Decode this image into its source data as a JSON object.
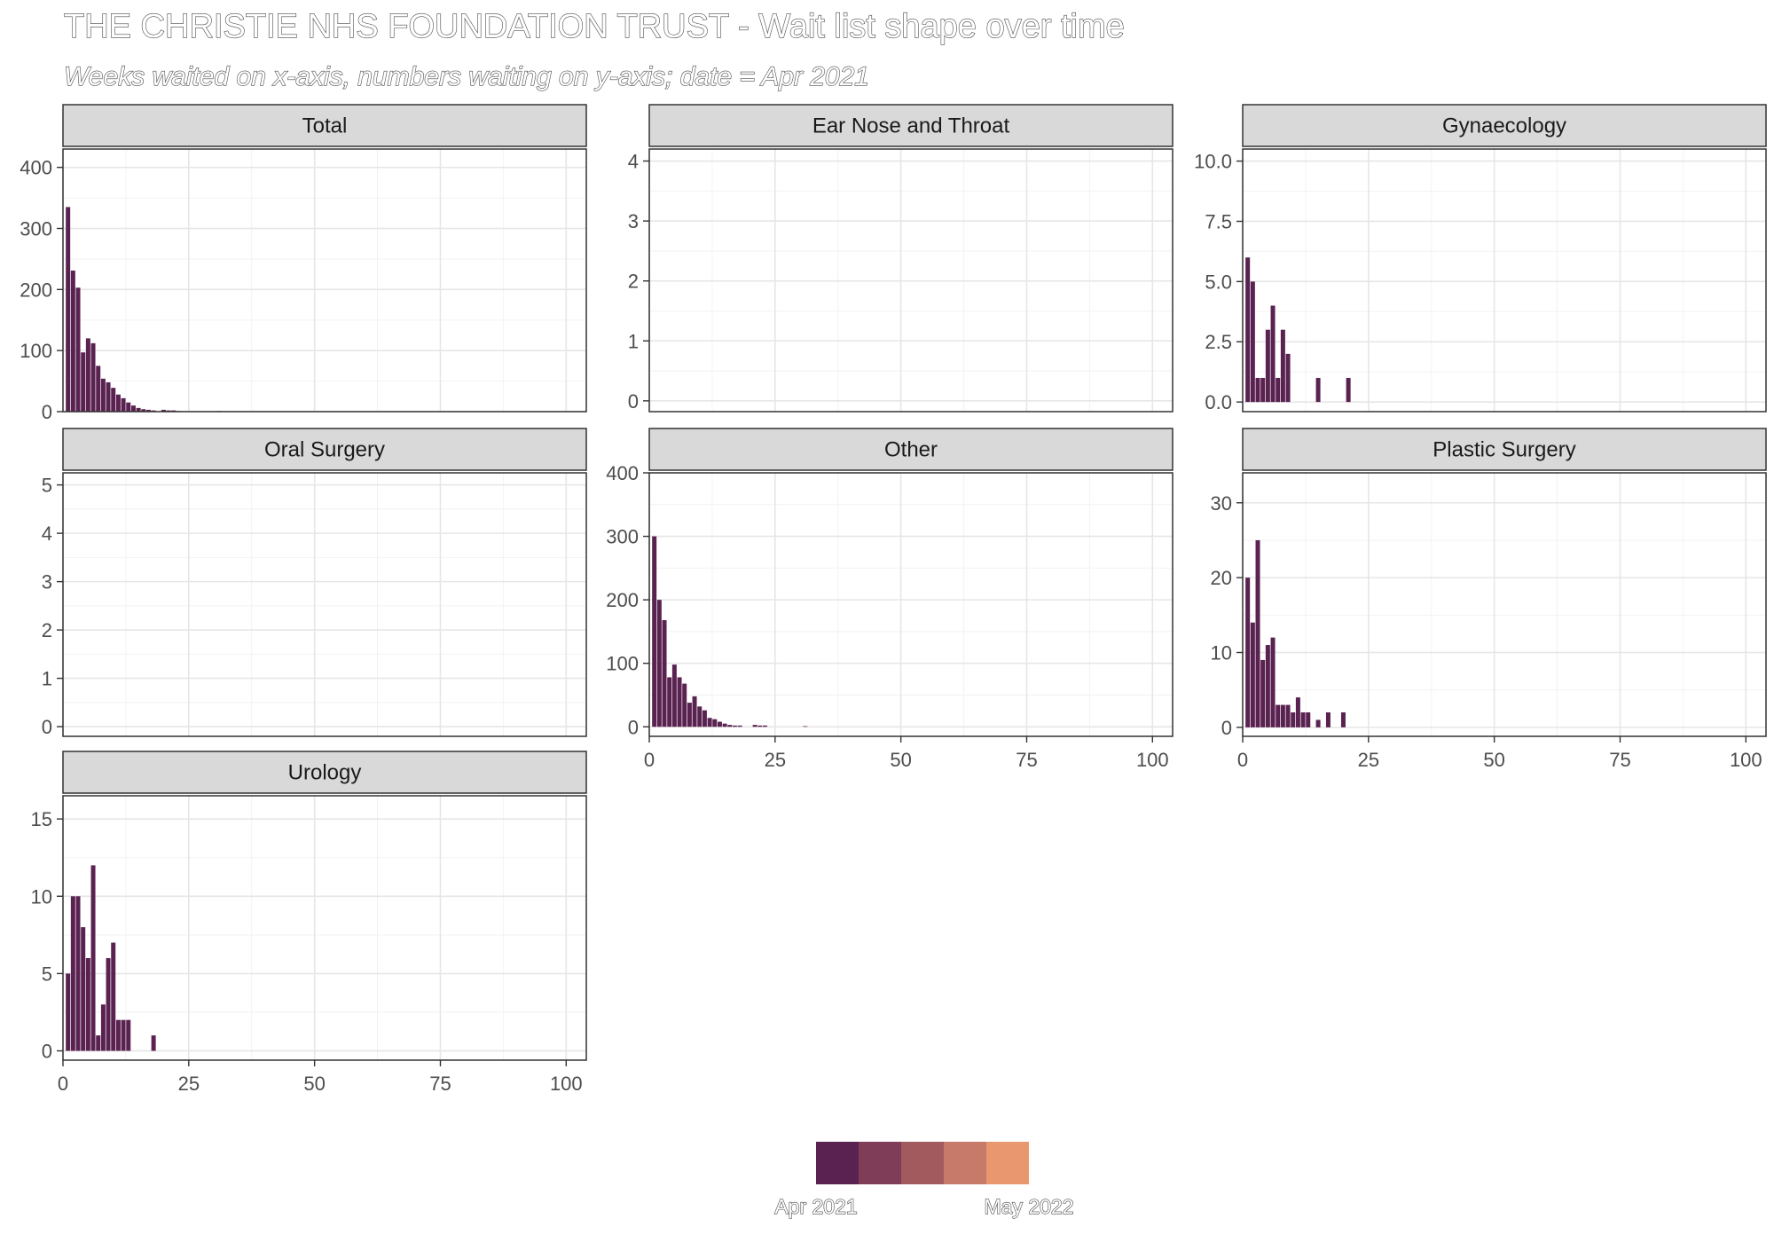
{
  "chart_data": {
    "type": "bar",
    "title": "THE CHRISTIE NHS FOUNDATION TRUST - Wait list shape over time",
    "subtitle": "Weeks waited on x-axis, numbers waiting on y-axis; date = Apr 2021",
    "xlim": [
      0,
      104
    ],
    "x_ticks": [
      0,
      25,
      50,
      75,
      100
    ],
    "bar_color": "#5a2250",
    "legend": {
      "position": "bottom",
      "colors": [
        "#5a2250",
        "#7f3d58",
        "#a35a5f",
        "#c77a6a",
        "#e8976e"
      ],
      "labels": [
        "Apr 2021",
        "May 2022"
      ]
    },
    "panels": [
      {
        "name": "Total",
        "ylim": [
          0,
          430
        ],
        "y_ticks": [
          0,
          100,
          200,
          300,
          400
        ],
        "y_tick_labels": [
          "0",
          "100",
          "200",
          "300",
          "400"
        ],
        "x": [
          1,
          2,
          3,
          4,
          5,
          6,
          7,
          8,
          9,
          10,
          11,
          12,
          13,
          14,
          15,
          16,
          17,
          18,
          20,
          21,
          22,
          23,
          31
        ],
        "values": [
          335,
          231,
          203,
          97,
          120,
          112,
          75,
          54,
          48,
          39,
          28,
          22,
          15,
          10,
          6,
          4,
          3,
          2,
          3,
          2,
          2,
          1,
          1
        ]
      },
      {
        "name": "Ear Nose and Throat",
        "ylim": [
          -0.18,
          4.2
        ],
        "y_ticks": [
          0,
          1,
          2,
          3,
          4
        ],
        "y_tick_labels": [
          "0",
          "1",
          "2",
          "3",
          "4"
        ],
        "x": [],
        "values": []
      },
      {
        "name": "Gynaecology",
        "ylim": [
          -0.4,
          10.5
        ],
        "y_ticks": [
          0,
          2.5,
          5,
          7.5,
          10
        ],
        "y_tick_labels": [
          "0.0",
          "2.5",
          "5.0",
          "7.5",
          "10.0"
        ],
        "x": [
          1,
          2,
          3,
          4,
          5,
          6,
          7,
          8,
          9,
          15,
          21
        ],
        "values": [
          6,
          5,
          1,
          1,
          3,
          4,
          1,
          3,
          2,
          1,
          1
        ]
      },
      {
        "name": "Oral Surgery",
        "ylim": [
          -0.2,
          5.25
        ],
        "y_ticks": [
          0,
          1,
          2,
          3,
          4,
          5
        ],
        "y_tick_labels": [
          "0",
          "1",
          "2",
          "3",
          "4",
          "5"
        ],
        "x": [],
        "values": []
      },
      {
        "name": "Other",
        "ylim": [
          -15,
          400
        ],
        "y_ticks": [
          0,
          100,
          200,
          300,
          400
        ],
        "y_tick_labels": [
          "0",
          "100",
          "200",
          "300",
          "400"
        ],
        "x": [
          1,
          2,
          3,
          4,
          5,
          6,
          7,
          8,
          9,
          10,
          11,
          12,
          13,
          14,
          15,
          16,
          17,
          18,
          21,
          22,
          23,
          31
        ],
        "values": [
          300,
          200,
          168,
          78,
          98,
          78,
          68,
          38,
          48,
          32,
          26,
          14,
          12,
          8,
          5,
          3,
          2,
          2,
          3,
          2,
          2,
          1
        ]
      },
      {
        "name": "Plastic Surgery",
        "ylim": [
          -1.2,
          34
        ],
        "y_ticks": [
          0,
          10,
          20,
          30
        ],
        "y_tick_labels": [
          "0",
          "10",
          "20",
          "30"
        ],
        "x": [
          1,
          2,
          3,
          4,
          5,
          6,
          7,
          8,
          9,
          10,
          11,
          12,
          13,
          15,
          17,
          20
        ],
        "values": [
          20,
          14,
          25,
          9,
          11,
          12,
          3,
          3,
          3,
          2,
          4,
          2,
          2,
          1,
          2,
          2
        ]
      },
      {
        "name": "Urology",
        "ylim": [
          -0.6,
          16.5
        ],
        "y_ticks": [
          0,
          5,
          10,
          15
        ],
        "y_tick_labels": [
          "0",
          "5",
          "10",
          "15"
        ],
        "x": [
          1,
          2,
          3,
          4,
          5,
          6,
          7,
          8,
          9,
          10,
          11,
          12,
          13,
          18
        ],
        "values": [
          5,
          10,
          10,
          8,
          6,
          12,
          1,
          3,
          6,
          7,
          2,
          2,
          2,
          1
        ]
      }
    ]
  }
}
